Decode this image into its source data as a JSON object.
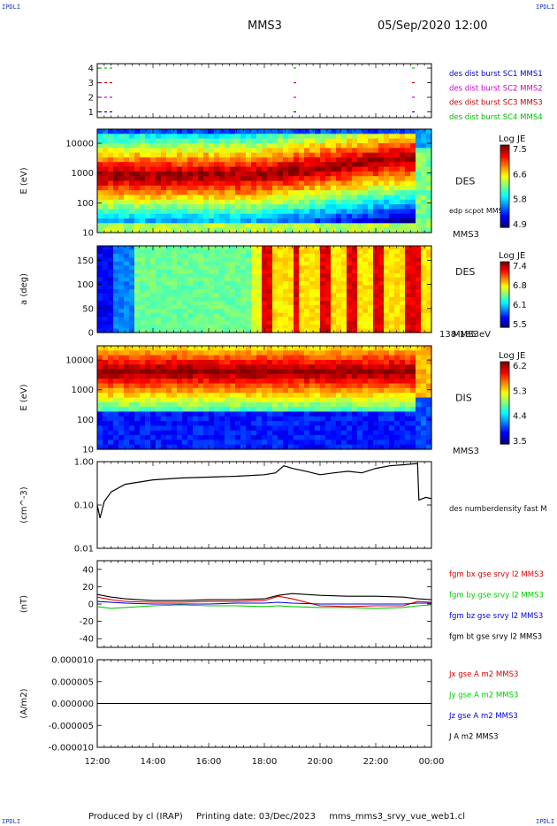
{
  "corners": {
    "tl": "IPDLI",
    "tr": "IPDLI",
    "bl": "IPDLI",
    "br": "IPDLI"
  },
  "header": {
    "title": "MMS3",
    "date": "05/Sep/2020 12:00"
  },
  "footer": {
    "produced": "Produced by cl (IRAP)",
    "printing": "Printing date: 03/Dec/2023",
    "file": "mms_mms3_srvy_vue_web1.cl"
  },
  "colors": {
    "sc1": "#0000cc",
    "sc2": "#cc00cc",
    "sc3": "#cc0000",
    "sc4": "#00bb00",
    "bx": "#dd0000",
    "by": "#00cc00",
    "bz": "#0000dd",
    "bt": "#000000"
  },
  "chart_data": [
    {
      "type": "scatter",
      "name": "burst",
      "yticks": [
        "4",
        "3",
        "2",
        "1"
      ],
      "legend": [
        "des dist burst SC1 MMS1",
        "des dist burst SC2 MMS2",
        "des dist burst SC3 MMS3",
        "des dist burst SC4 MMS4"
      ]
    },
    {
      "type": "heatmap",
      "name": "des-energy",
      "ylabel": "E (eV)",
      "yticks": [
        "10000",
        "1000",
        "100",
        "10"
      ],
      "ylim": [
        10,
        30000
      ],
      "label": "DES",
      "sublabel": "edp scpot MMS3",
      "sc": "MMS3",
      "colorbar": {
        "title": "Log JE",
        "ticks": [
          "7.5",
          "6.6",
          "5.8",
          "4.9"
        ]
      }
    },
    {
      "type": "heatmap",
      "name": "des-pitch",
      "ylabel": "a (deg)",
      "yticks": [
        "150",
        "100",
        "50",
        "0"
      ],
      "ylim": [
        0,
        180
      ],
      "label": "DES",
      "sc": "MMS3",
      "range_label": "138-185 eV",
      "colorbar": {
        "title": "Log JE",
        "ticks": [
          "7.4",
          "6.8",
          "6.1",
          "5.5"
        ]
      }
    },
    {
      "type": "heatmap",
      "name": "dis-energy",
      "ylabel": "E (eV)",
      "yticks": [
        "10000",
        "1000",
        "100",
        "10"
      ],
      "ylim": [
        10,
        30000
      ],
      "label": "DIS",
      "sc": "MMS3",
      "colorbar": {
        "title": "Log JE",
        "ticks": [
          "6.2",
          "5.3",
          "4.4",
          "3.5"
        ]
      }
    },
    {
      "type": "line",
      "name": "density",
      "ylabel": "(cm^-3)",
      "yticks": [
        "1.00",
        "0.10",
        "0.01"
      ],
      "ylim": [
        0.01,
        1.0
      ],
      "legend": [
        "des numberdensity fast M"
      ],
      "x": [
        12.0,
        12.1,
        12.25,
        12.5,
        13.0,
        14.0,
        15.0,
        16.0,
        17.0,
        18.0,
        18.4,
        18.7,
        19.0,
        19.5,
        20.0,
        20.5,
        21.0,
        21.5,
        22.0,
        22.5,
        23.0,
        23.5,
        23.55,
        23.8,
        24.0
      ],
      "values": [
        0.1,
        0.05,
        0.12,
        0.2,
        0.3,
        0.38,
        0.42,
        0.44,
        0.46,
        0.5,
        0.55,
        0.8,
        0.7,
        0.6,
        0.5,
        0.55,
        0.6,
        0.55,
        0.7,
        0.8,
        0.85,
        0.9,
        0.13,
        0.15,
        0.14
      ]
    },
    {
      "type": "line",
      "name": "magnetic-field",
      "ylabel": "(nT)",
      "yticks": [
        "40",
        "20",
        "0",
        "-20",
        "-40"
      ],
      "ylim": [
        -50,
        50
      ],
      "x": [
        12.0,
        12.5,
        13.0,
        14.0,
        15.0,
        16.0,
        17.0,
        18.0,
        18.5,
        19.0,
        20.0,
        21.0,
        22.0,
        23.0,
        23.5,
        24.0
      ],
      "series": [
        {
          "name": "fgm bx gse srvy l2 MMS3",
          "values": [
            8,
            5,
            3,
            2,
            2,
            3,
            3,
            4,
            9,
            6,
            -2,
            -3,
            -2,
            -2,
            3,
            2
          ]
        },
        {
          "name": "fgm by gse srvy l2 MMS3",
          "values": [
            -3,
            -5,
            -4,
            -2,
            -1,
            -2,
            -2,
            -3,
            -2,
            -3,
            -4,
            -4,
            -5,
            -4,
            -2,
            -1
          ]
        },
        {
          "name": "fgm bz gse srvy l2 MMS3",
          "values": [
            3,
            2,
            1,
            0,
            0,
            0,
            1,
            1,
            2,
            1,
            0,
            0,
            0,
            0,
            1,
            1
          ]
        },
        {
          "name": "fgm bt gse srvy l2 MMS3",
          "values": [
            11,
            8,
            6,
            4,
            4,
            5,
            5,
            6,
            10,
            12,
            10,
            9,
            9,
            8,
            6,
            5
          ]
        }
      ]
    },
    {
      "type": "line",
      "name": "current-density",
      "ylabel": "(A/m2)",
      "yticks": [
        "0.000010",
        "0.000005",
        "0.000000",
        "-0.000005",
        "-0.000010"
      ],
      "ylim": [
        -1e-05,
        1e-05
      ],
      "xticks": [
        "12:00",
        "14:00",
        "16:00",
        "18:00",
        "20:00",
        "22:00",
        "00:00"
      ],
      "legend": [
        "Jx gse A m2 MMS3",
        "Jy gse A m2 MMS3",
        "Jz gse A m2 MMS3",
        "J A m2 MMS3"
      ],
      "x": [
        12.0,
        24.0
      ],
      "values": [
        0.0,
        0.0
      ]
    }
  ]
}
